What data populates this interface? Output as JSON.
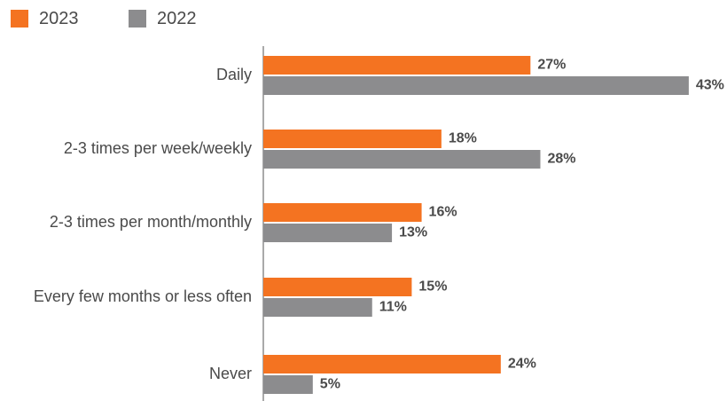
{
  "chart_data": {
    "type": "bar",
    "orientation": "horizontal",
    "categories": [
      "Daily",
      "2-3 times per week/weekly",
      "2-3 times per month/monthly",
      "Every few months or less often",
      "Never"
    ],
    "series": [
      {
        "name": "2023",
        "color": "#f47321",
        "values": [
          27,
          18,
          16,
          15,
          24
        ],
        "labels": [
          "27%",
          "18%",
          "16%",
          "15%",
          "24%"
        ]
      },
      {
        "name": "2022",
        "color": "#8c8c8e",
        "values": [
          43,
          28,
          13,
          11,
          5
        ],
        "labels": [
          "43%",
          "28%",
          "13%",
          "11%",
          "5%"
        ]
      }
    ],
    "legend_position": "top-left",
    "grid": false
  }
}
